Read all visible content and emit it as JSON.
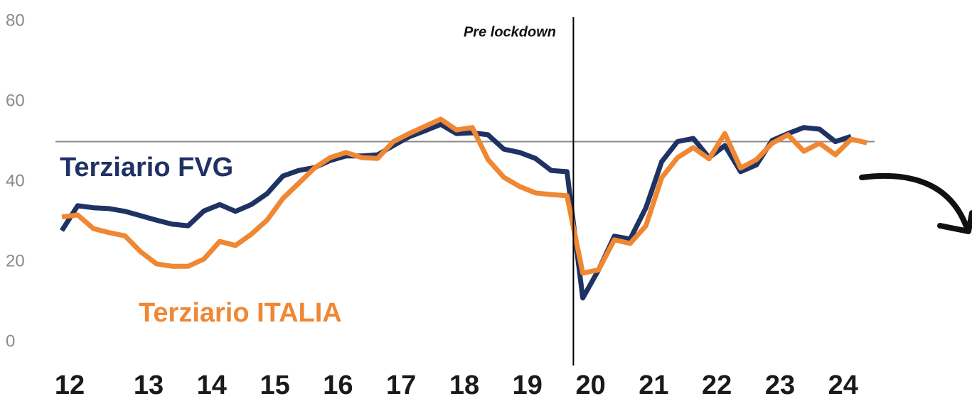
{
  "chart_data": {
    "type": "line",
    "annotations": [
      "Pre lockdown",
      "Terziario FVG",
      "Terziario ITALIA"
    ],
    "categories": [
      "12",
      null,
      null,
      null,
      null,
      "13",
      null,
      null,
      null,
      "14",
      null,
      null,
      null,
      "15",
      null,
      null,
      null,
      "16",
      null,
      null,
      null,
      "17",
      null,
      null,
      null,
      "18",
      null,
      null,
      null,
      "19",
      null,
      null,
      null,
      "20",
      null,
      null,
      null,
      "21",
      null,
      null,
      null,
      "22",
      null,
      null,
      null,
      "23",
      null,
      null,
      null,
      "24",
      null,
      null
    ],
    "series": [
      {
        "name": "Terziario FVG",
        "color": "#1f3264",
        "values": [
          27.8,
          34,
          33.5,
          33.3,
          32.6,
          31.5,
          30.4,
          29.4,
          29,
          32.7,
          34.3,
          32.6,
          34.3,
          37,
          41.4,
          42.8,
          43.5,
          45.3,
          46.4,
          46.4,
          46.7,
          49,
          51.2,
          52.7,
          54.3,
          52,
          52.2,
          51.7,
          48.1,
          47.3,
          45.8,
          42.8,
          42.5,
          11,
          18,
          26.4,
          25.7,
          33.5,
          45,
          50,
          50.8,
          46,
          49,
          42.5,
          44.2,
          50.3,
          52,
          53.5,
          53.1,
          50,
          51.3,
          null
        ]
      },
      {
        "name": "Terziario ITALIA",
        "color": "#ef8733",
        "values": [
          31.2,
          31.7,
          28.3,
          27.3,
          26.5,
          22.5,
          19.5,
          18.9,
          18.9,
          20.7,
          25.1,
          24.1,
          26.9,
          30.4,
          35.8,
          39.6,
          43.4,
          46,
          47.3,
          46,
          45.8,
          50,
          52,
          53.8,
          55.6,
          52.9,
          53.5,
          45.5,
          41.1,
          38.8,
          37.2,
          36.8,
          36.5,
          17.2,
          18,
          25.5,
          24.6,
          29,
          41,
          46,
          48.5,
          45.7,
          52,
          43.4,
          45.5,
          49.6,
          51.7,
          47.6,
          49.6,
          46.7,
          50.6,
          49.7
        ]
      }
    ],
    "reference_line": 50,
    "event_index": 32,
    "ylim": [
      0,
      80
    ],
    "yticks": [
      0,
      20,
      40,
      60,
      80
    ],
    "grid": false
  }
}
